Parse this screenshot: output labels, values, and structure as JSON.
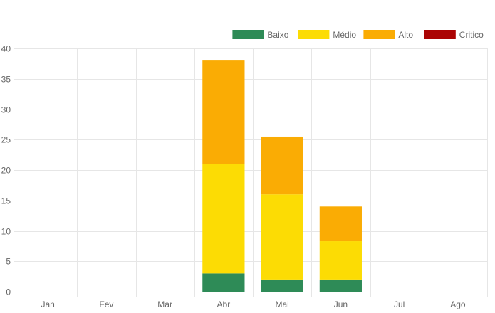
{
  "chart_data": {
    "type": "bar",
    "stacked": true,
    "categories": [
      "Jan",
      "Fev",
      "Mar",
      "Abr",
      "Mai",
      "Jun",
      "Jul",
      "Ago"
    ],
    "series": [
      {
        "name": "Baixo",
        "color": "#2e8b57",
        "values": [
          0,
          0,
          0,
          3,
          2,
          2,
          0,
          0
        ]
      },
      {
        "name": "Médio",
        "color": "#fcdc04",
        "values": [
          0,
          0,
          0,
          18,
          14,
          6.3,
          0,
          0
        ]
      },
      {
        "name": "Alto",
        "color": "#faac04",
        "values": [
          0,
          0,
          0,
          17,
          9.5,
          5.7,
          0,
          0
        ]
      },
      {
        "name": "Critico",
        "color": "#ab0404",
        "values": [
          0,
          0,
          0,
          0,
          0,
          0,
          0,
          0
        ]
      }
    ],
    "ylim": [
      0,
      40
    ],
    "yticks": [
      0,
      5,
      10,
      15,
      20,
      25,
      30,
      35,
      40
    ],
    "grid": true,
    "legend_position": "top-right",
    "title": "",
    "xlabel": "",
    "ylabel": ""
  }
}
